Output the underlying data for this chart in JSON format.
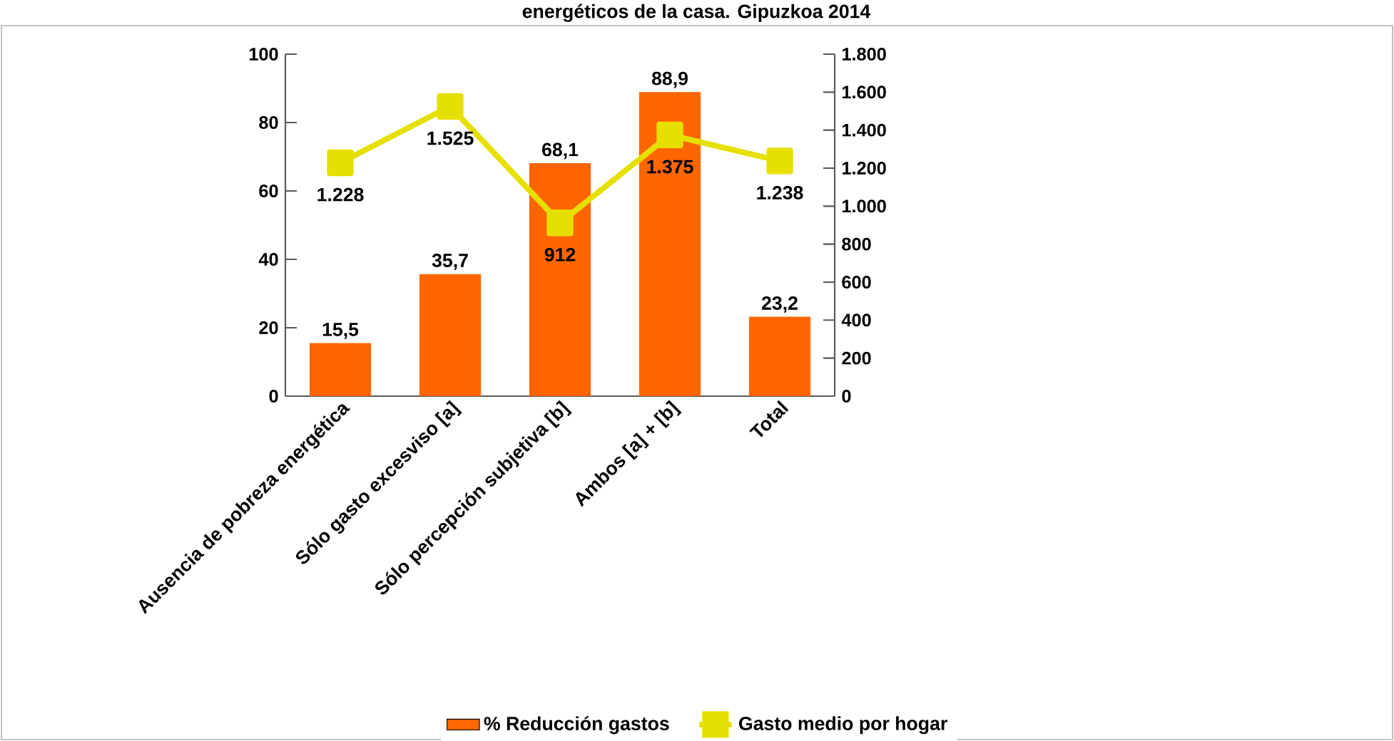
{
  "chart_data": {
    "type": "bar",
    "title": "energéticos de la casa. Gipuzkoa 2014",
    "categories": [
      "Ausencia de pobreza energética",
      "Sólo gasto excesviso [a]",
      "Sólo percepción subjetiva [b]",
      "Ambos [a] + [b]",
      "Total"
    ],
    "series": [
      {
        "name": "% Reducción gastos",
        "color": "#ff6600",
        "values": [
          15.5,
          35.7,
          68.1,
          88.9,
          23.2
        ],
        "value_labels": [
          "15,5",
          "35,7",
          "68,1",
          "88,9",
          "23,2"
        ]
      },
      {
        "name": "Gasto medio por hogar",
        "type": "line",
        "axis": "y2",
        "marker": "square",
        "color": "#e6e000",
        "values": [
          1228,
          1525,
          912,
          1375,
          1238
        ],
        "value_labels": [
          "1.228",
          "1.525",
          "912",
          "1.375",
          "1.238"
        ]
      }
    ],
    "ylim": [
      0,
      100
    ],
    "yticks": [
      0,
      20,
      40,
      60,
      80,
      100
    ],
    "y2lim": [
      0,
      1800
    ],
    "y2ticks": [
      {
        "value": 0,
        "label": "0"
      },
      {
        "value": 200,
        "label": "200"
      },
      {
        "value": 400,
        "label": "400"
      },
      {
        "value": 600,
        "label": "600"
      },
      {
        "value": 800,
        "label": "800"
      },
      {
        "value": 1000,
        "label": "1.000"
      },
      {
        "value": 1200,
        "label": "1.200"
      },
      {
        "value": 1400,
        "label": "1.400"
      },
      {
        "value": 1600,
        "label": "1.600"
      },
      {
        "value": 1800,
        "label": "1.800"
      }
    ],
    "legend": "bottom"
  }
}
